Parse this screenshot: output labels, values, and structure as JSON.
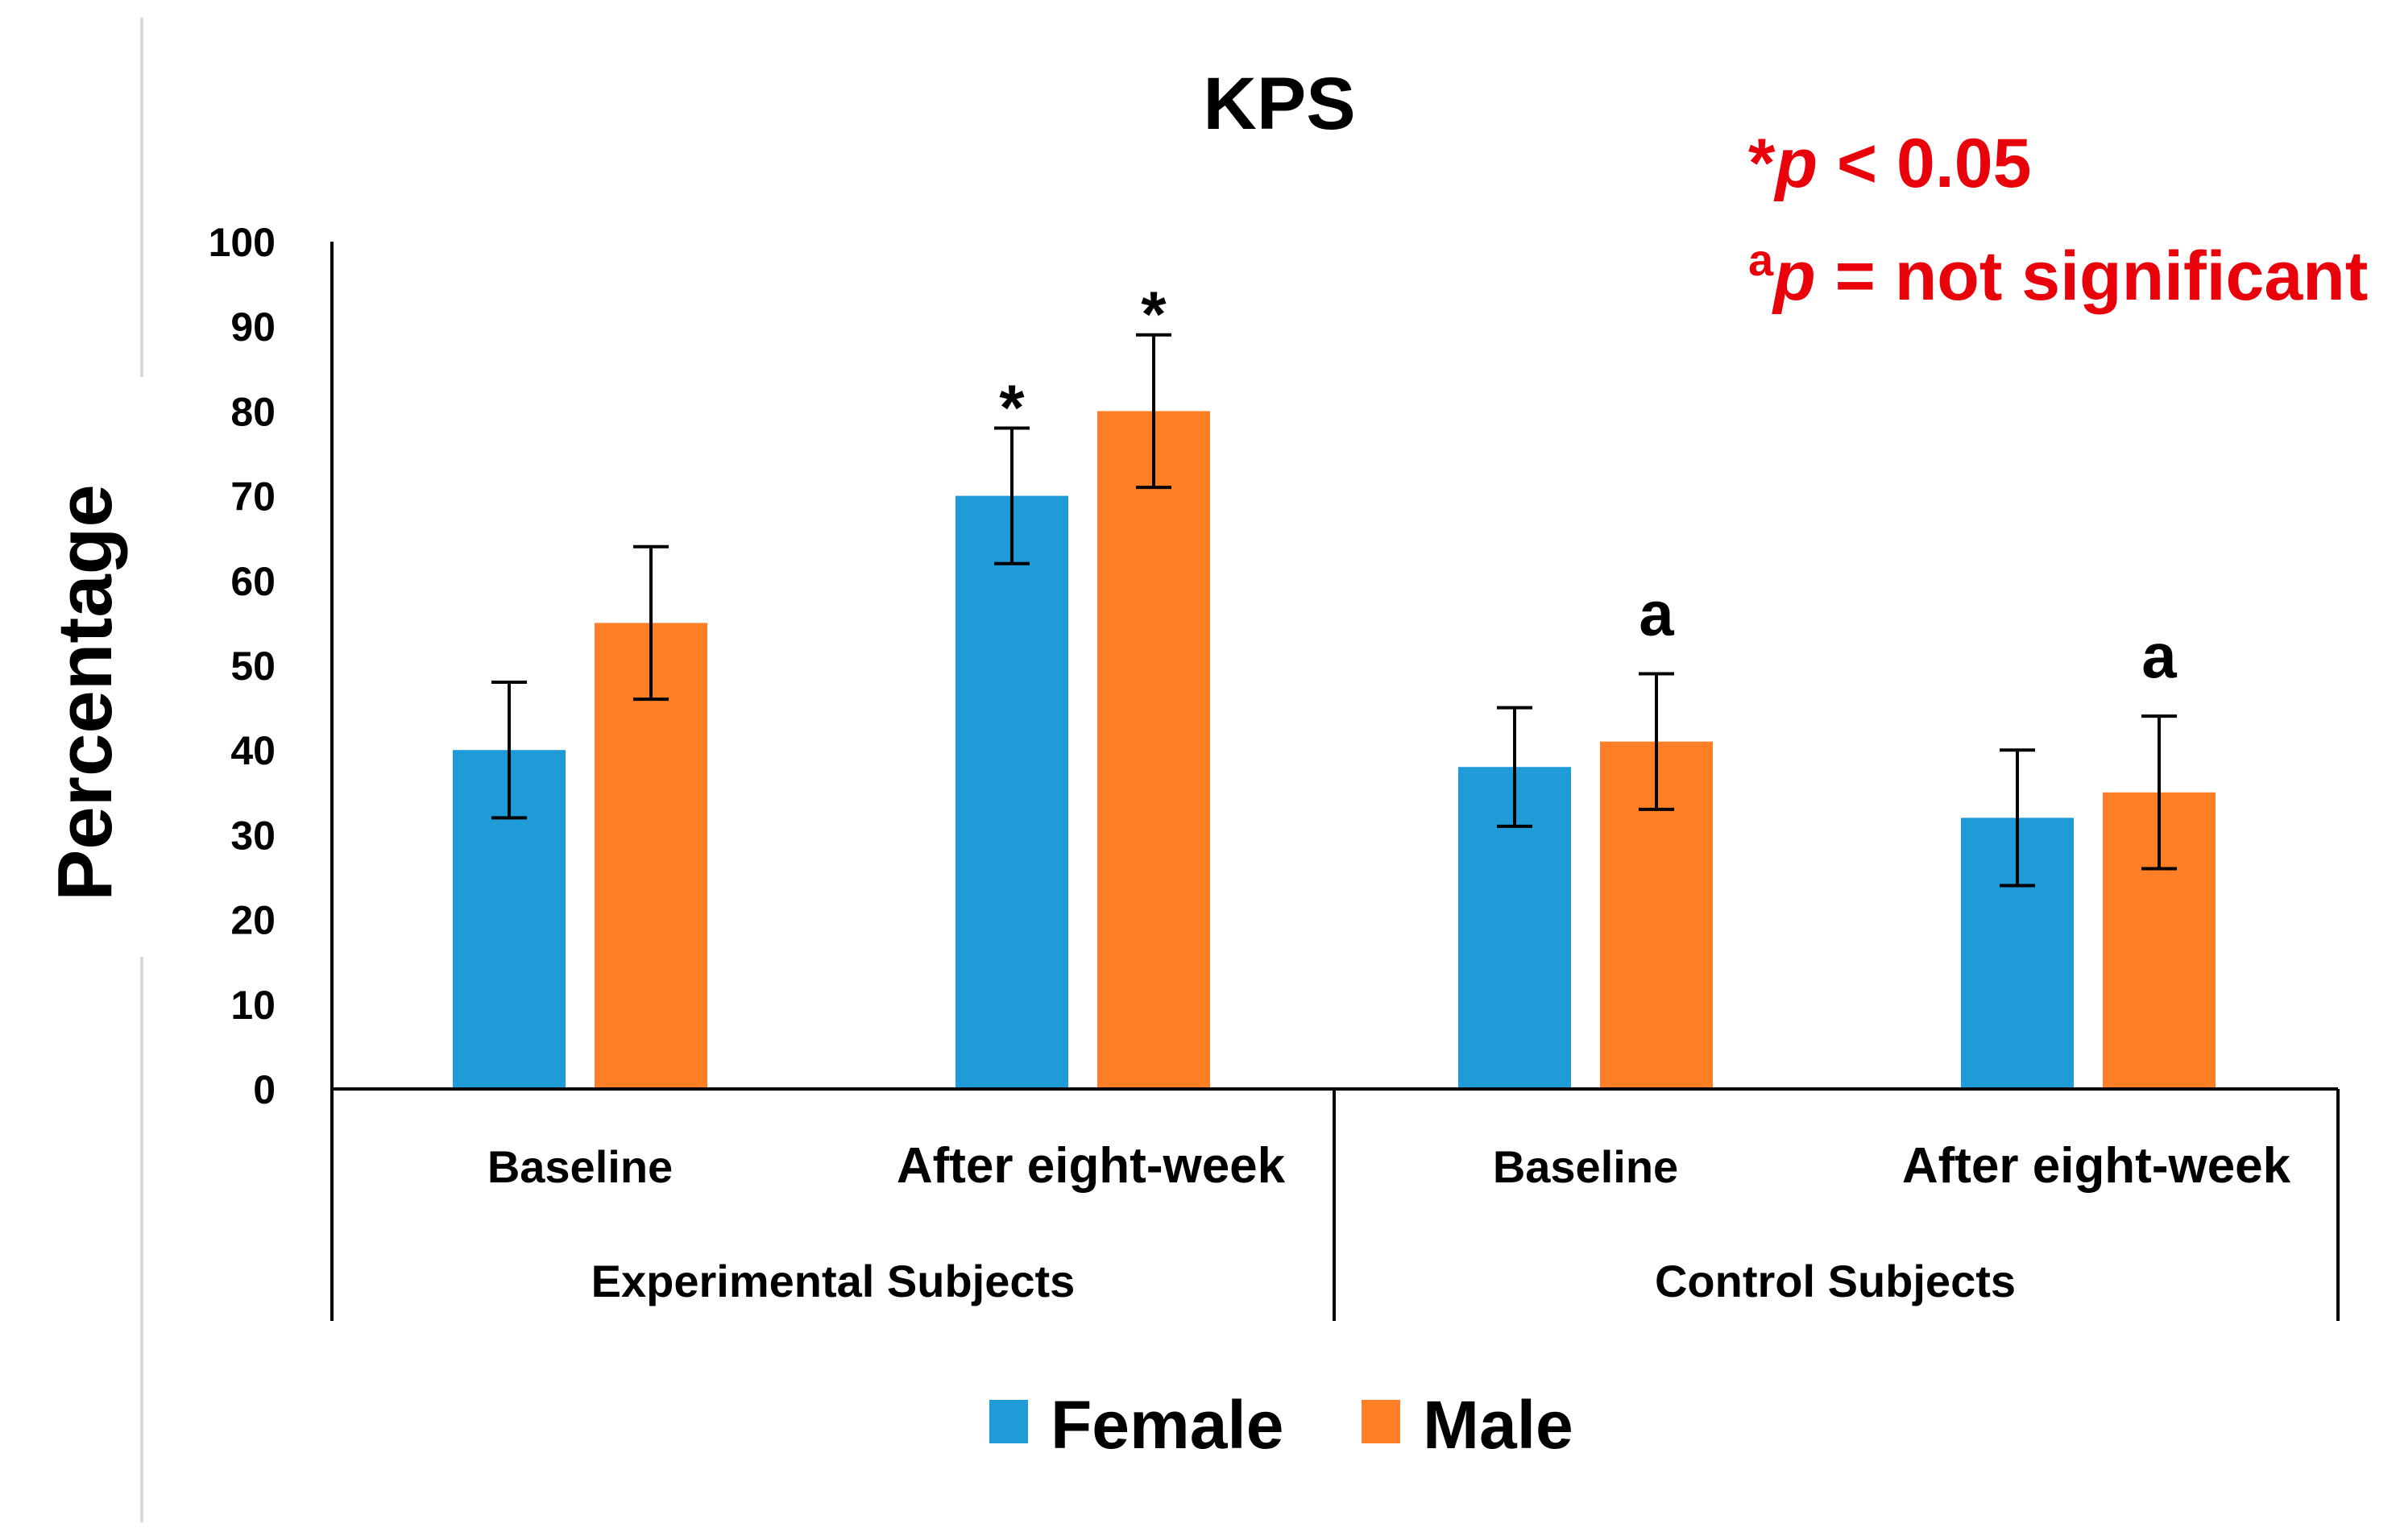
{
  "chart_data": {
    "type": "bar",
    "title": "KPS",
    "ylabel": "Percentage",
    "xlabel": "",
    "ylim": [
      0,
      100
    ],
    "yticks": [
      0,
      10,
      20,
      30,
      40,
      50,
      60,
      70,
      80,
      90,
      100
    ],
    "categories": [
      "Baseline",
      "After eight-week",
      "Baseline",
      "After eight-week"
    ],
    "groups": [
      {
        "label": "Experimental Subjects",
        "span": [
          0,
          1
        ]
      },
      {
        "label": "Control Subjects",
        "span": [
          2,
          3
        ]
      }
    ],
    "series": [
      {
        "name": "Female",
        "color": "#1f9bd8",
        "values": [
          40,
          70,
          38,
          32
        ],
        "errors": [
          8,
          8,
          7,
          8
        ]
      },
      {
        "name": "Male",
        "color": "#ff7f27",
        "values": [
          55,
          80,
          41,
          35
        ],
        "errors": [
          9,
          9,
          8,
          9
        ]
      }
    ],
    "annotations": [
      {
        "category": 1,
        "series": 0,
        "text": "*"
      },
      {
        "category": 1,
        "series": 1,
        "text": "*"
      },
      {
        "category": 2,
        "series": 1,
        "text": "a"
      },
      {
        "category": 3,
        "series": 1,
        "text": "a"
      }
    ],
    "notes": {
      "line1_prefix": "*",
      "line1_p": "p",
      "line1_rest": " < 0.05",
      "line2_prefix": "a",
      "line2_p": "p",
      "line2_rest": " = not significant",
      "color": "#e8000b"
    },
    "legend": "bottom"
  }
}
